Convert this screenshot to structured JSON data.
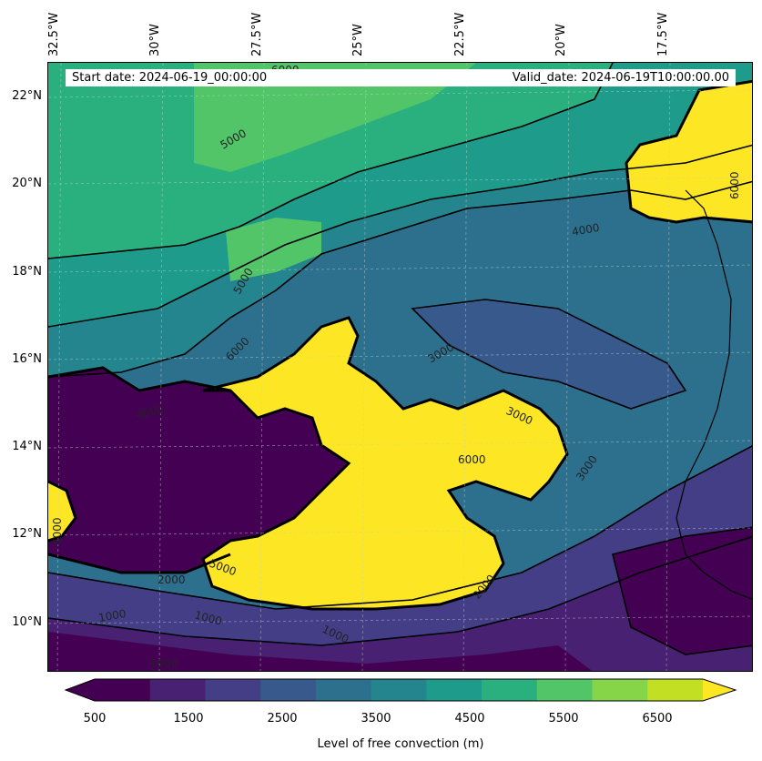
{
  "map": {
    "start_date": "Start date: 2024-06-19_00:00:00",
    "valid_date": "Valid_date: 2024-06-19T10:00:00.00",
    "lon_labels": [
      "32.5°W",
      "30°W",
      "27.5°W",
      "25°W",
      "22.5°W",
      "20°W",
      "17.5°W"
    ],
    "lat_labels": [
      "22°N",
      "20°N",
      "18°N",
      "16°N",
      "14°N",
      "12°N",
      "10°N"
    ],
    "contour_labels": [
      "5000",
      "5000",
      "4000",
      "6000",
      "3000",
      "3000",
      "3000",
      "6000",
      "3000",
      "2000",
      "5000",
      "2000",
      "1000",
      "1000",
      "1000",
      "1000",
      "6000",
      "6000",
      "6000"
    ]
  },
  "colorbar": {
    "label": "Level of free convection (m)",
    "tick_labels": [
      "500",
      "1500",
      "2500",
      "3500",
      "4500",
      "5500",
      "6500"
    ],
    "colors": [
      "#440154",
      "#482173",
      "#433e85",
      "#38598c",
      "#2d708e",
      "#25858e",
      "#1e9b8a",
      "#2ab07f",
      "#52c569",
      "#86d549",
      "#c2df23",
      "#fde725"
    ]
  }
}
